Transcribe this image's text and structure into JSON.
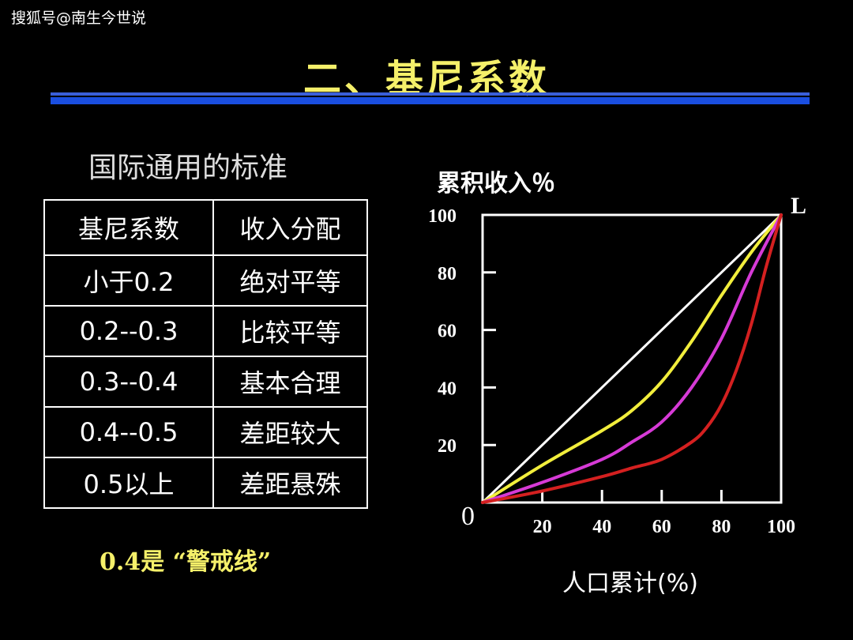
{
  "watermark": "搜狐号@南生今世说",
  "title": "二、基尼系数",
  "subtitle": "国际通用的标准",
  "table": {
    "headers": [
      "基尼系数",
      "收入分配"
    ],
    "rows": [
      [
        "小于0.2",
        "绝对平等"
      ],
      [
        "0.2--0.3",
        "比较平等"
      ],
      [
        "0.3--0.4",
        "基本合理"
      ],
      [
        "0.4--0.5",
        "差距较大"
      ],
      [
        "0.5以上",
        "差距悬殊"
      ]
    ]
  },
  "note": "0.4是 “警戒线”",
  "chart_data": {
    "type": "line",
    "title": "",
    "ylabel": "累积收入％",
    "xlabel": "人口累计(%)",
    "origin_label": "0",
    "corner_label": "L",
    "xlim": [
      0,
      100
    ],
    "ylim": [
      0,
      100
    ],
    "xticks": [
      20,
      40,
      60,
      80,
      100
    ],
    "yticks": [
      20,
      40,
      60,
      80,
      100
    ],
    "series": [
      {
        "name": "equality",
        "color": "#ffffff",
        "x": [
          0,
          100
        ],
        "y": [
          0,
          100
        ]
      },
      {
        "name": "yellow",
        "color": "#f2ee3c",
        "x": [
          0,
          20,
          40,
          50,
          60,
          70,
          80,
          90,
          100
        ],
        "y": [
          0,
          13,
          25,
          32,
          42,
          56,
          72,
          87,
          100
        ]
      },
      {
        "name": "magenta",
        "color": "#d63ad6",
        "x": [
          0,
          20,
          40,
          50,
          60,
          70,
          80,
          90,
          100
        ],
        "y": [
          0,
          7,
          15,
          21,
          28,
          40,
          57,
          80,
          100
        ]
      },
      {
        "name": "red",
        "color": "#d42020",
        "x": [
          0,
          20,
          40,
          50,
          60,
          70,
          75,
          80,
          85,
          90,
          95,
          100
        ],
        "y": [
          0,
          4,
          9,
          12,
          15,
          21,
          26,
          34,
          46,
          62,
          82,
          100
        ]
      }
    ]
  }
}
